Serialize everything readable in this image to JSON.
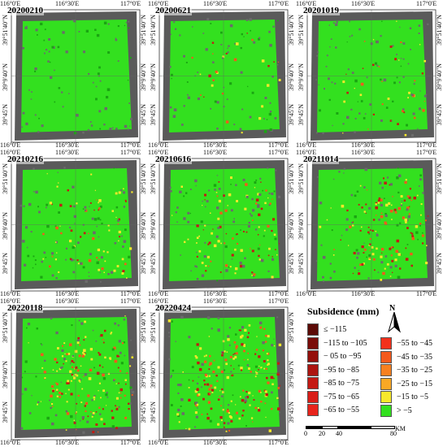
{
  "panels": [
    {
      "date": "20200210",
      "level": 0
    },
    {
      "date": "20200621",
      "level": 1
    },
    {
      "date": "20201019",
      "level": 2
    },
    {
      "date": "20210216",
      "level": 3
    },
    {
      "date": "20210616",
      "level": 4
    },
    {
      "date": "20211014",
      "level": 5
    },
    {
      "date": "20220118",
      "level": 6
    },
    {
      "date": "20220424",
      "level": 7
    }
  ],
  "axes": {
    "lon_ticks": [
      "116°0'E",
      "116°30'E",
      "117°0'E"
    ],
    "lat_ticks": [
      "39°51'40\"N",
      "39°9'40\"N",
      "39°45'N"
    ]
  },
  "legend": {
    "title": "Subsidence (mm)",
    "left": [
      {
        "label": "≤ −115",
        "color": "#5c0a06"
      },
      {
        "label": "−115 to −105",
        "color": "#7a0c08"
      },
      {
        "label": "− 05 to −95",
        "color": "#94100b"
      },
      {
        "label": "−95 to −85",
        "color": "#ad1510"
      },
      {
        "label": "−85 to −75",
        "color": "#c41a14"
      },
      {
        "label": "−75 to −65",
        "color": "#d91e18"
      },
      {
        "label": "−65 to −55",
        "color": "#e8241c"
      }
    ],
    "right": [
      {
        "label": "−55 to −45",
        "color": "#f2311c"
      },
      {
        "label": "−45 to −35",
        "color": "#f5591c"
      },
      {
        "label": "−35 to −25",
        "color": "#f7801f"
      },
      {
        "label": "−25 to −15",
        "color": "#f9a825"
      },
      {
        "label": "−15 to −5",
        "color": "#f7e82b"
      },
      {
        "label": "> −5",
        "color": "#33e01f"
      }
    ]
  },
  "north": "N",
  "scale": {
    "ticks": [
      "0",
      "20",
      "40",
      "80"
    ],
    "unit": "KM"
  },
  "colors": {
    "background": "#5a5a5a",
    "stable": "#33e01f",
    "yellow": "#f7e82b",
    "orange": "#f5591c",
    "red": "#c41a14"
  }
}
